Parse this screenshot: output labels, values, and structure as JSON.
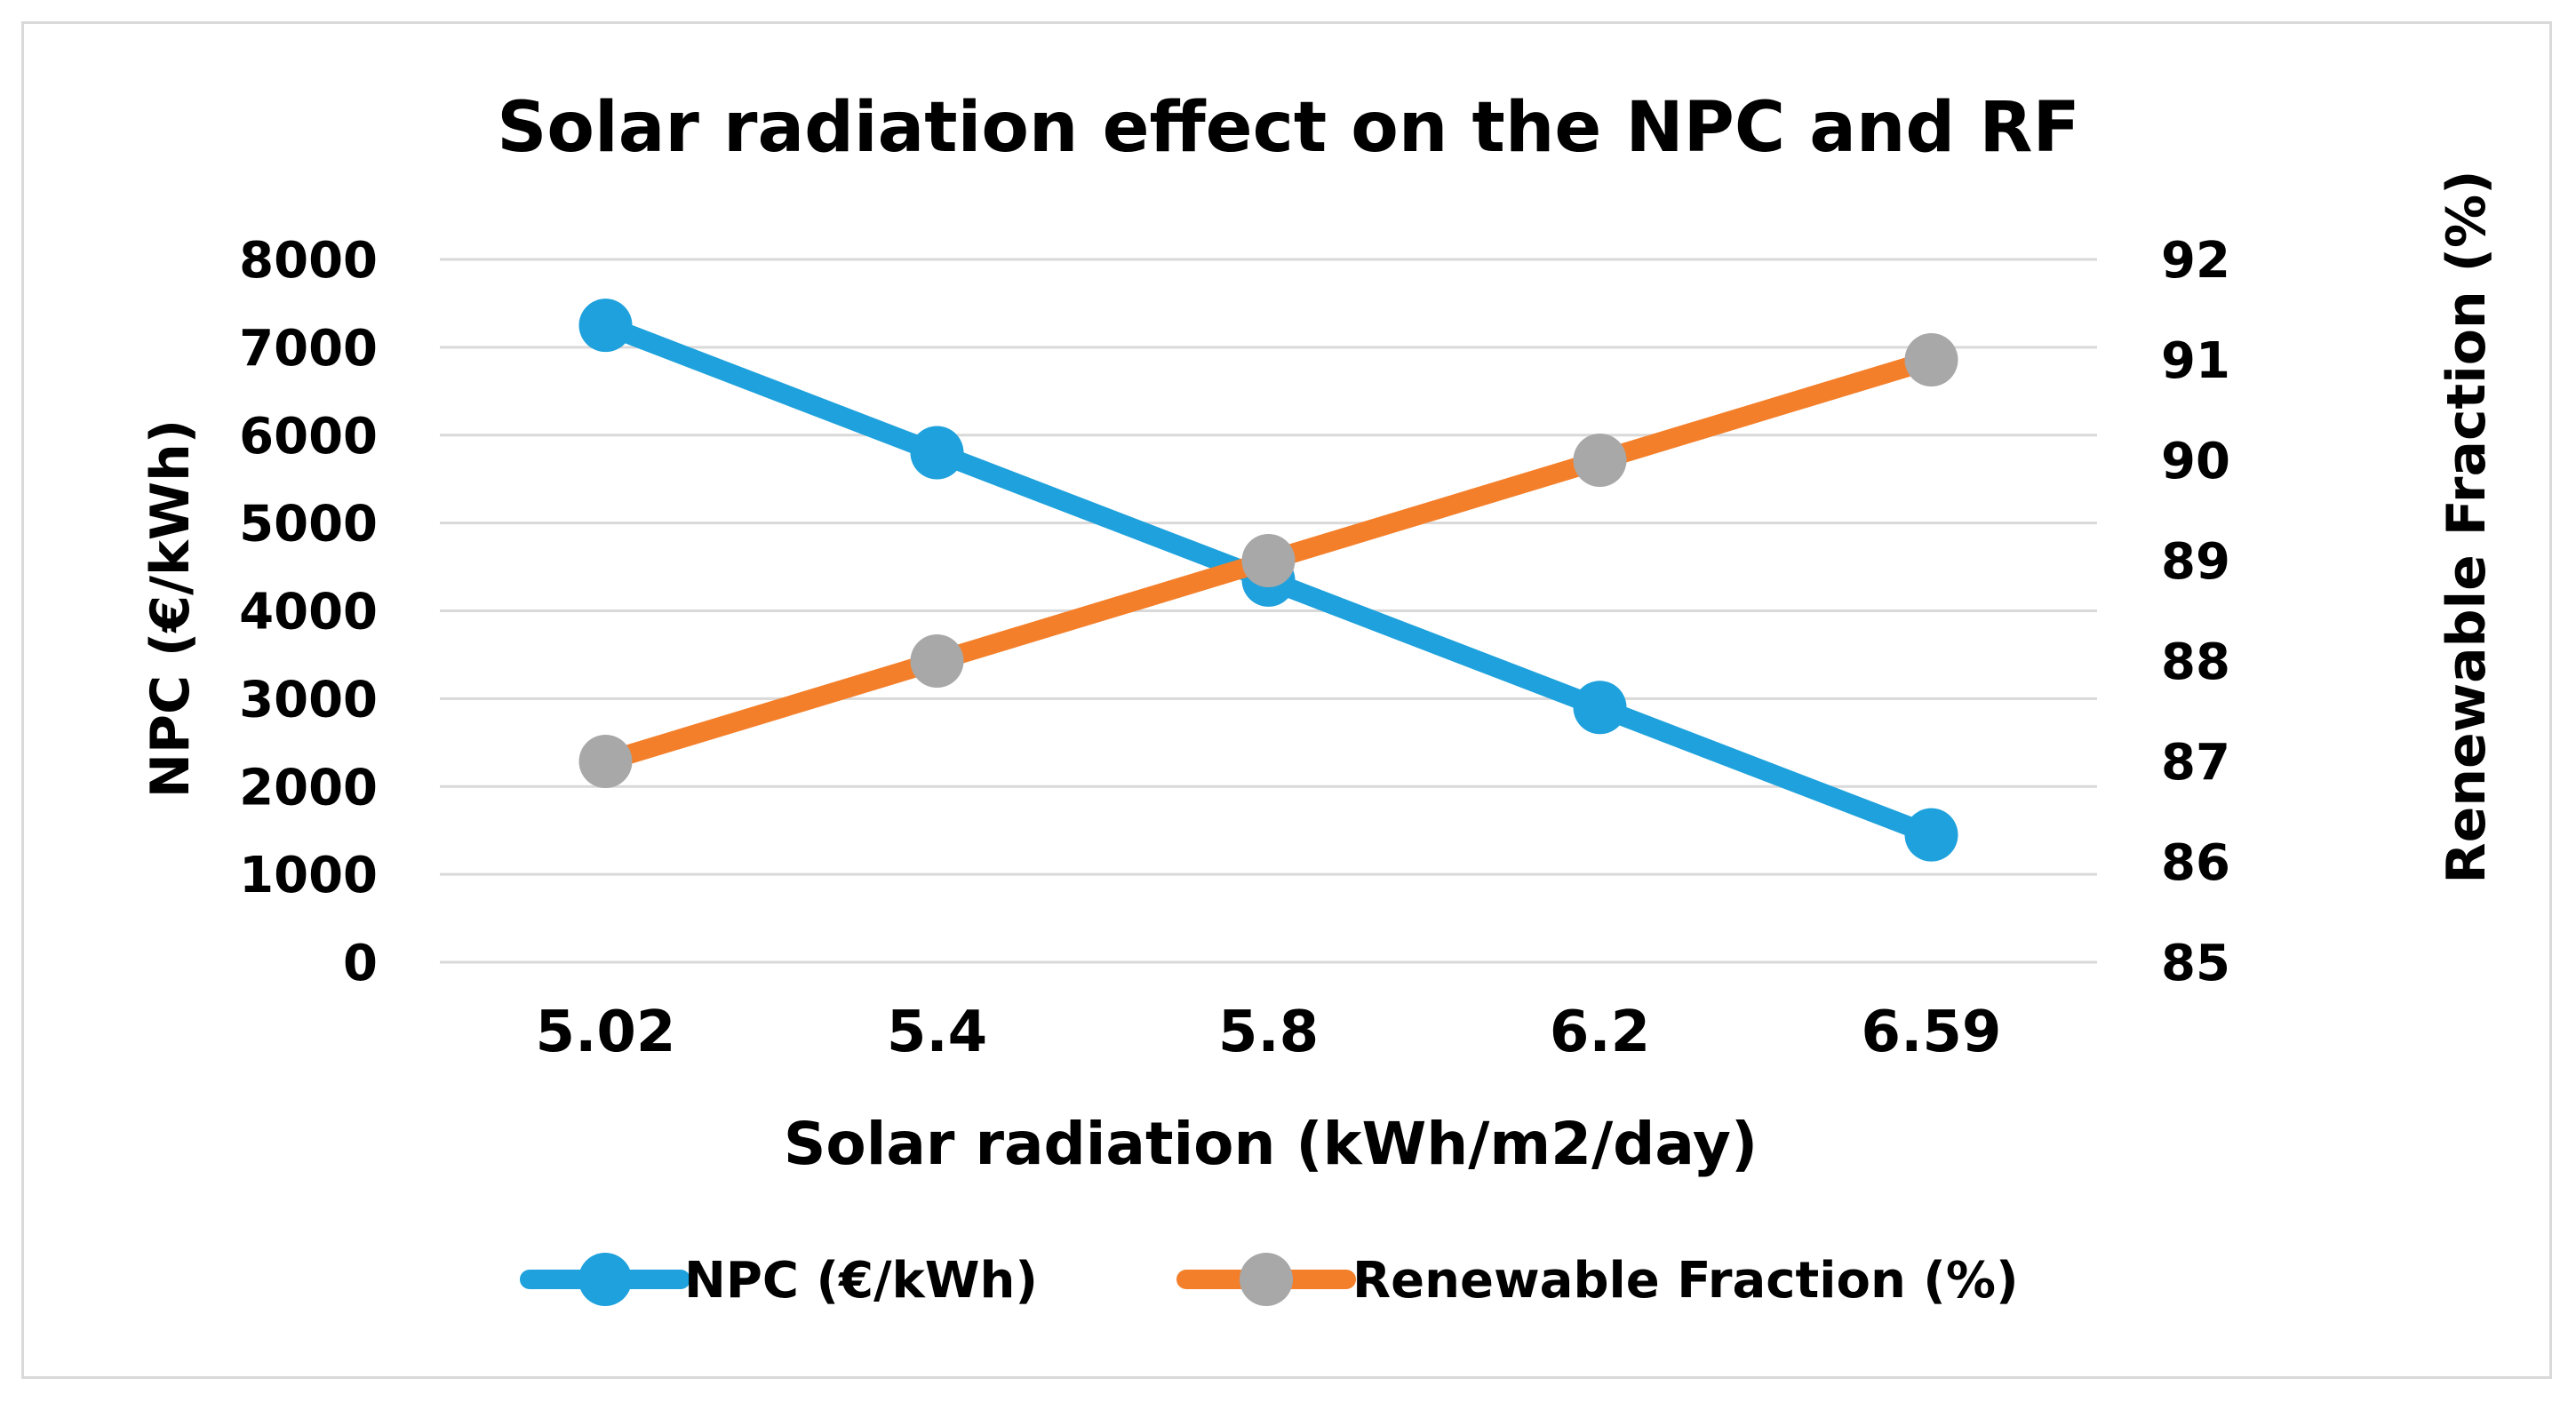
{
  "chart_data": {
    "type": "line",
    "title": "Solar radiation effect on the NPC and RF",
    "xlabel": "Solar radiation (kWh/m2/day)",
    "ylabel": "NPC (€/kWh)",
    "y2label": "Renewable Fraction (%)",
    "categories": [
      "5.02",
      "5.4",
      "5.8",
      "6.2",
      "6.59"
    ],
    "ylim": [
      0,
      8000
    ],
    "yticks": [
      "0",
      "1000",
      "2000",
      "3000",
      "4000",
      "5000",
      "6000",
      "7000",
      "8000"
    ],
    "y2lim": [
      85,
      92
    ],
    "y2ticks": [
      "85",
      "86",
      "87",
      "88",
      "89",
      "90",
      "91",
      "92"
    ],
    "grid": true,
    "legend_position": "bottom",
    "series": [
      {
        "name": "NPC (€/kWh)",
        "axis": "left",
        "values": [
          7250,
          5800,
          4350,
          2900,
          1450
        ],
        "line_color": "#1ea1dc",
        "marker_color": "#1ea1dc"
      },
      {
        "name": "Renewable Fraction (%)",
        "axis": "right",
        "values": [
          87,
          88,
          89,
          90,
          91
        ],
        "line_color": "#f47f2a",
        "marker_color": "#a8a8a8"
      }
    ]
  }
}
